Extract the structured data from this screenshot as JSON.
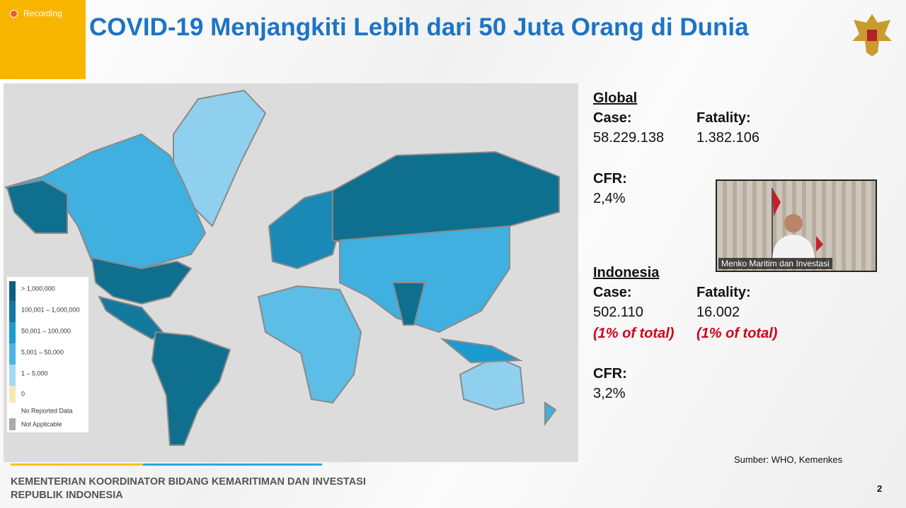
{
  "recording": "Recording",
  "slide": {
    "title": "COVID-19 Menjangkiti Lebih dari 50 Juta Orang di Dunia",
    "legend": [
      "> 1,000,000",
      "100,001 – 1,000,000",
      "50,001 – 100,000",
      "5,001 – 50,000",
      "1 – 5,000",
      "0",
      "No Reported Data",
      "Not Applicable"
    ],
    "global": {
      "heading": "Global",
      "case_label": "Case:",
      "case": "58.229.138",
      "fatality_label": "Fatality:",
      "fatality": "1.382.106",
      "cfr_label": "CFR:",
      "cfr": "2,4%"
    },
    "indonesia": {
      "heading": "Indonesia",
      "case_label": "Case:",
      "case": "502.110",
      "case_note": "(1% of total)",
      "fatality_label": "Fatality:",
      "fatality": "16.002",
      "fatality_note": "(1% of total)",
      "cfr_label": "CFR:",
      "cfr": "3,2%"
    },
    "source": "Sumber: WHO, Kemenkes",
    "footer": [
      "KEMENTERIAN KOORDINATOR BIDANG KEMARITIMAN DAN INVESTASI",
      "REPUBLIK INDONESIA"
    ],
    "page": "2"
  },
  "video": {
    "caption": "Menko Maritim dan Investasi"
  }
}
